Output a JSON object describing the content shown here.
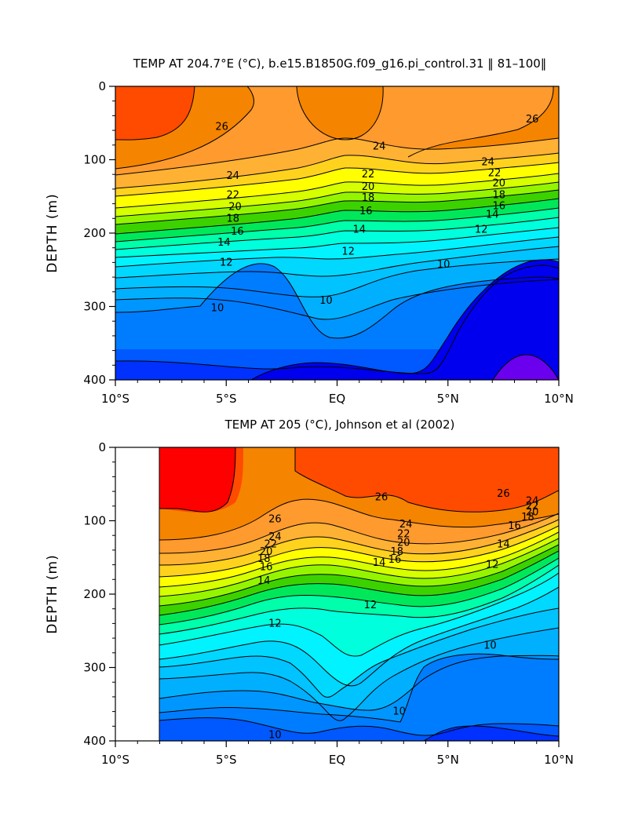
{
  "chart_data": [
    {
      "type": "contour",
      "title": "TEMP AT 204.7°E (°C), b.e15.B1850G.f09_g16.pi_control.31 ‖ 81–100‖",
      "xlabel": "",
      "ylabel": "DEPTH (m)",
      "xlim": [
        -10,
        10
      ],
      "ylim": [
        400,
        0
      ],
      "x_ticks": [
        -10,
        -5,
        0,
        5,
        10
      ],
      "x_tick_labels": [
        "10°S",
        "5°S",
        "EQ",
        "5°N",
        "10°N"
      ],
      "y_ticks": [
        0,
        100,
        200,
        300,
        400
      ],
      "y_tick_labels": [
        "0",
        "100",
        "200",
        "300",
        "400"
      ],
      "data_start_lat": -10,
      "contour_labels": [
        {
          "text": "26",
          "lat": -5.2,
          "depth": 55
        },
        {
          "text": "24",
          "lat": -4.7,
          "depth": 122
        },
        {
          "text": "22",
          "lat": -4.7,
          "depth": 148
        },
        {
          "text": "20",
          "lat": -4.6,
          "depth": 164
        },
        {
          "text": "18",
          "lat": -4.7,
          "depth": 180
        },
        {
          "text": "16",
          "lat": -4.5,
          "depth": 198
        },
        {
          "text": "14",
          "lat": -5.1,
          "depth": 213
        },
        {
          "text": "12",
          "lat": -5.0,
          "depth": 240
        },
        {
          "text": "10",
          "lat": -5.4,
          "depth": 302
        },
        {
          "text": "24",
          "lat": 1.9,
          "depth": 82
        },
        {
          "text": "22",
          "lat": 1.4,
          "depth": 120
        },
        {
          "text": "20",
          "lat": 1.4,
          "depth": 137
        },
        {
          "text": "18",
          "lat": 1.4,
          "depth": 152
        },
        {
          "text": "16",
          "lat": 1.3,
          "depth": 170
        },
        {
          "text": "14",
          "lat": 1.0,
          "depth": 195
        },
        {
          "text": "12",
          "lat": 0.5,
          "depth": 225
        },
        {
          "text": "10",
          "lat": -0.5,
          "depth": 292
        },
        {
          "text": "10",
          "lat": 4.8,
          "depth": 243
        },
        {
          "text": "26",
          "lat": 8.8,
          "depth": 45
        },
        {
          "text": "24",
          "lat": 6.8,
          "depth": 103
        },
        {
          "text": "22",
          "lat": 7.1,
          "depth": 118
        },
        {
          "text": "20",
          "lat": 7.3,
          "depth": 132
        },
        {
          "text": "18",
          "lat": 7.3,
          "depth": 148
        },
        {
          "text": "16",
          "lat": 7.3,
          "depth": 163
        },
        {
          "text": "14",
          "lat": 7.0,
          "depth": 175
        },
        {
          "text": "12",
          "lat": 6.5,
          "depth": 195
        }
      ]
    },
    {
      "type": "contour",
      "title": "TEMP AT 205 (°C), Johnson et al (2002)",
      "xlabel": "",
      "ylabel": "DEPTH (m)",
      "xlim": [
        -10,
        10
      ],
      "ylim": [
        400,
        0
      ],
      "x_ticks": [
        -10,
        -5,
        0,
        5,
        10
      ],
      "x_tick_labels": [
        "10°S",
        "5°S",
        "EQ",
        "5°N",
        "10°N"
      ],
      "y_ticks": [
        0,
        100,
        200,
        300,
        400
      ],
      "y_tick_labels": [
        "0",
        "100",
        "200",
        "300",
        "400"
      ],
      "data_start_lat": -8,
      "contour_labels": [
        {
          "text": "26",
          "lat": -2.8,
          "depth": 98
        },
        {
          "text": "24",
          "lat": -2.8,
          "depth": 122
        },
        {
          "text": "22",
          "lat": -3.0,
          "depth": 132
        },
        {
          "text": "20",
          "lat": -3.2,
          "depth": 142
        },
        {
          "text": "18",
          "lat": -3.3,
          "depth": 152
        },
        {
          "text": "16",
          "lat": -3.2,
          "depth": 163
        },
        {
          "text": "14",
          "lat": -3.3,
          "depth": 182
        },
        {
          "text": "12",
          "lat": -2.8,
          "depth": 240
        },
        {
          "text": "10",
          "lat": -2.8,
          "depth": 392
        },
        {
          "text": "26",
          "lat": 2.0,
          "depth": 68
        },
        {
          "text": "24",
          "lat": 3.1,
          "depth": 105
        },
        {
          "text": "22",
          "lat": 3.0,
          "depth": 118
        },
        {
          "text": "20",
          "lat": 3.0,
          "depth": 130
        },
        {
          "text": "18",
          "lat": 2.7,
          "depth": 142
        },
        {
          "text": "16",
          "lat": 2.6,
          "depth": 153
        },
        {
          "text": "14",
          "lat": 1.9,
          "depth": 157
        },
        {
          "text": "12",
          "lat": 1.5,
          "depth": 215
        },
        {
          "text": "10",
          "lat": 2.8,
          "depth": 360
        },
        {
          "text": "10",
          "lat": 6.9,
          "depth": 270
        },
        {
          "text": "26",
          "lat": 7.5,
          "depth": 63
        },
        {
          "text": "24",
          "lat": 8.8,
          "depth": 73
        },
        {
          "text": "22",
          "lat": 8.8,
          "depth": 80
        },
        {
          "text": "20",
          "lat": 8.8,
          "depth": 88
        },
        {
          "text": "18",
          "lat": 8.6,
          "depth": 95
        },
        {
          "text": "16",
          "lat": 8.0,
          "depth": 107
        },
        {
          "text": "14",
          "lat": 7.5,
          "depth": 132
        },
        {
          "text": "12",
          "lat": 7.0,
          "depth": 160
        }
      ]
    }
  ],
  "colors": {
    "t28": "#ff0000",
    "t27": "#ff4b00",
    "t26": "#f58400",
    "t25": "#ff9a2e",
    "t24": "#ffb134",
    "t23": "#ffd21e",
    "t22": "#ffff00",
    "t21": "#d6ff00",
    "t20": "#95f500",
    "t19": "#3cd200",
    "t18": "#00e85a",
    "t17": "#00ffaa",
    "t16": "#00ffdc",
    "t15": "#00f3ff",
    "t14": "#00d8ff",
    "t13": "#00c3ff",
    "t12": "#00b0ff",
    "t11": "#0096ff",
    "t10": "#007dff",
    "t9": "#0058ff",
    "t8": "#0031ff",
    "t7": "#0000ee",
    "t6": "#6a00ee"
  }
}
